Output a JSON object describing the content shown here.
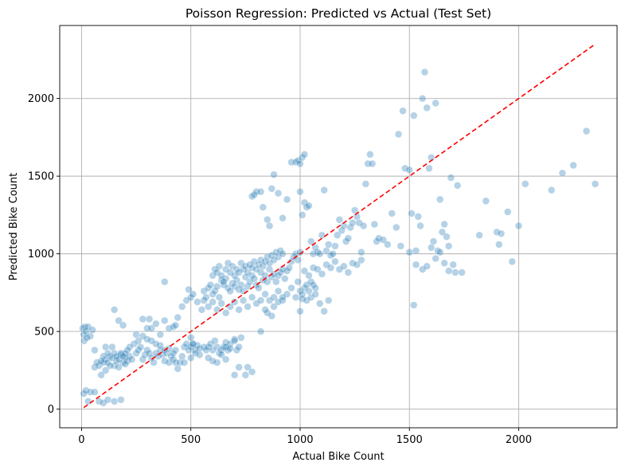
{
  "chart_data": {
    "type": "scatter",
    "title": "Poisson Regression: Predicted vs Actual (Test Set)",
    "xlabel": "Actual Bike Count",
    "ylabel": "Predicted Bike Count",
    "xlim": [
      -100,
      2450
    ],
    "ylim": [
      -120,
      2470
    ],
    "xticks": [
      0,
      500,
      1000,
      1500,
      2000
    ],
    "yticks": [
      0,
      500,
      1000,
      1500,
      2000
    ],
    "xtick_labels": [
      "0",
      "500",
      "1000",
      "1500",
      "2000"
    ],
    "ytick_labels": [
      "0",
      "500",
      "1000",
      "1500",
      "2000"
    ],
    "grid": true,
    "point_color": "#1f77b4",
    "reference_line": {
      "from": [
        10,
        10
      ],
      "to": [
        2350,
        2350
      ],
      "color": "#ff0000",
      "style": "dashed"
    },
    "points": [
      [
        5,
        520
      ],
      [
        10,
        480
      ],
      [
        15,
        530
      ],
      [
        20,
        500
      ],
      [
        30,
        530
      ],
      [
        40,
        470
      ],
      [
        50,
        510
      ],
      [
        12,
        440
      ],
      [
        25,
        460
      ],
      [
        10,
        100
      ],
      [
        20,
        120
      ],
      [
        40,
        110
      ],
      [
        60,
        110
      ],
      [
        30,
        50
      ],
      [
        80,
        50
      ],
      [
        100,
        40
      ],
      [
        150,
        50
      ],
      [
        180,
        60
      ],
      [
        120,
        60
      ],
      [
        60,
        270
      ],
      [
        80,
        280
      ],
      [
        90,
        220
      ],
      [
        100,
        300
      ],
      [
        110,
        320
      ],
      [
        120,
        300
      ],
      [
        130,
        340
      ],
      [
        140,
        330
      ],
      [
        150,
        280
      ],
      [
        160,
        310
      ],
      [
        170,
        320
      ],
      [
        180,
        350
      ],
      [
        190,
        300
      ],
      [
        200,
        330
      ],
      [
        210,
        310
      ],
      [
        220,
        340
      ],
      [
        230,
        320
      ],
      [
        100,
        340
      ],
      [
        110,
        250
      ],
      [
        130,
        280
      ],
      [
        150,
        360
      ],
      [
        170,
        270
      ],
      [
        200,
        290
      ],
      [
        60,
        380
      ],
      [
        70,
        300
      ],
      [
        90,
        310
      ],
      [
        120,
        360
      ],
      [
        140,
        400
      ],
      [
        160,
        340
      ],
      [
        180,
        360
      ],
      [
        110,
        400
      ],
      [
        150,
        640
      ],
      [
        170,
        570
      ],
      [
        190,
        540
      ],
      [
        250,
        360
      ],
      [
        260,
        380
      ],
      [
        270,
        400
      ],
      [
        280,
        320
      ],
      [
        290,
        350
      ],
      [
        300,
        380
      ],
      [
        310,
        360
      ],
      [
        320,
        330
      ],
      [
        330,
        300
      ],
      [
        340,
        360
      ],
      [
        350,
        340
      ],
      [
        360,
        380
      ],
      [
        370,
        350
      ],
      [
        380,
        310
      ],
      [
        390,
        360
      ],
      [
        400,
        300
      ],
      [
        410,
        340
      ],
      [
        420,
        320
      ],
      [
        430,
        300
      ],
      [
        440,
        260
      ],
      [
        250,
        480
      ],
      [
        280,
        580
      ],
      [
        300,
        520
      ],
      [
        320,
        520
      ],
      [
        310,
        580
      ],
      [
        340,
        550
      ],
      [
        360,
        480
      ],
      [
        380,
        570
      ],
      [
        400,
        520
      ],
      [
        420,
        530
      ],
      [
        380,
        820
      ],
      [
        430,
        540
      ],
      [
        440,
        590
      ],
      [
        450,
        300
      ],
      [
        470,
        400
      ],
      [
        480,
        420
      ],
      [
        490,
        380
      ],
      [
        500,
        400
      ],
      [
        510,
        420
      ],
      [
        520,
        380
      ],
      [
        530,
        410
      ],
      [
        540,
        390
      ],
      [
        500,
        460
      ],
      [
        510,
        420
      ],
      [
        520,
        360
      ],
      [
        460,
        660
      ],
      [
        480,
        700
      ],
      [
        490,
        770
      ],
      [
        500,
        720
      ],
      [
        510,
        740
      ],
      [
        530,
        690
      ],
      [
        550,
        640
      ],
      [
        560,
        700
      ],
      [
        560,
        400
      ],
      [
        570,
        380
      ],
      [
        580,
        400
      ],
      [
        590,
        420
      ],
      [
        600,
        380
      ],
      [
        610,
        440
      ],
      [
        620,
        400
      ],
      [
        630,
        360
      ],
      [
        640,
        380
      ],
      [
        650,
        400
      ],
      [
        660,
        430
      ],
      [
        670,
        380
      ],
      [
        680,
        420
      ],
      [
        700,
        450
      ],
      [
        710,
        380
      ],
      [
        720,
        400
      ],
      [
        730,
        460
      ],
      [
        750,
        220
      ],
      [
        760,
        270
      ],
      [
        780,
        240
      ],
      [
        560,
        760
      ],
      [
        570,
        720
      ],
      [
        580,
        780
      ],
      [
        590,
        800
      ],
      [
        600,
        740
      ],
      [
        610,
        760
      ],
      [
        620,
        790
      ],
      [
        630,
        720
      ],
      [
        640,
        830
      ],
      [
        650,
        800
      ],
      [
        660,
        840
      ],
      [
        670,
        780
      ],
      [
        680,
        760
      ],
      [
        690,
        810
      ],
      [
        700,
        790
      ],
      [
        710,
        830
      ],
      [
        720,
        770
      ],
      [
        730,
        800
      ],
      [
        740,
        760
      ],
      [
        750,
        850
      ],
      [
        760,
        790
      ],
      [
        770,
        820
      ],
      [
        780,
        860
      ],
      [
        790,
        840
      ],
      [
        800,
        800
      ],
      [
        810,
        780
      ],
      [
        820,
        880
      ],
      [
        830,
        830
      ],
      [
        840,
        860
      ],
      [
        850,
        820
      ],
      [
        860,
        900
      ],
      [
        870,
        850
      ],
      [
        880,
        870
      ],
      [
        890,
        820
      ],
      [
        900,
        860
      ],
      [
        910,
        880
      ],
      [
        920,
        900
      ],
      [
        930,
        840
      ],
      [
        940,
        890
      ],
      [
        950,
        910
      ],
      [
        960,
        950
      ],
      [
        970,
        980
      ],
      [
        980,
        1000
      ],
      [
        990,
        960
      ],
      [
        1000,
        1010
      ],
      [
        600,
        860
      ],
      [
        610,
        900
      ],
      [
        620,
        880
      ],
      [
        630,
        920
      ],
      [
        640,
        860
      ],
      [
        650,
        820
      ],
      [
        660,
        900
      ],
      [
        670,
        940
      ],
      [
        680,
        880
      ],
      [
        690,
        920
      ],
      [
        700,
        860
      ],
      [
        710,
        900
      ],
      [
        720,
        880
      ],
      [
        730,
        940
      ],
      [
        740,
        900
      ],
      [
        750,
        920
      ],
      [
        760,
        880
      ],
      [
        770,
        930
      ],
      [
        780,
        910
      ],
      [
        790,
        950
      ],
      [
        800,
        900
      ],
      [
        810,
        930
      ],
      [
        820,
        960
      ],
      [
        830,
        920
      ],
      [
        840,
        950
      ],
      [
        850,
        980
      ],
      [
        860,
        940
      ],
      [
        870,
        990
      ],
      [
        880,
        960
      ],
      [
        890,
        1010
      ],
      [
        900,
        980
      ],
      [
        910,
        1020
      ],
      [
        920,
        1000
      ],
      [
        580,
        660
      ],
      [
        600,
        690
      ],
      [
        620,
        640
      ],
      [
        640,
        680
      ],
      [
        660,
        620
      ],
      [
        680,
        660
      ],
      [
        700,
        690
      ],
      [
        720,
        640
      ],
      [
        740,
        700
      ],
      [
        760,
        660
      ],
      [
        780,
        720
      ],
      [
        800,
        680
      ],
      [
        820,
        700
      ],
      [
        840,
        740
      ],
      [
        860,
        700
      ],
      [
        880,
        720
      ],
      [
        900,
        760
      ],
      [
        920,
        700
      ],
      [
        940,
        740
      ],
      [
        960,
        780
      ],
      [
        980,
        720
      ],
      [
        990,
        820
      ],
      [
        1000,
        760
      ],
      [
        1010,
        740
      ],
      [
        1020,
        780
      ],
      [
        1030,
        800
      ],
      [
        1040,
        760
      ],
      [
        1050,
        820
      ],
      [
        1060,
        800
      ],
      [
        1070,
        780
      ],
      [
        780,
        1370
      ],
      [
        790,
        1380
      ],
      [
        800,
        1400
      ],
      [
        820,
        1400
      ],
      [
        830,
        1300
      ],
      [
        850,
        1220
      ],
      [
        860,
        1180
      ],
      [
        870,
        1420
      ],
      [
        880,
        1510
      ],
      [
        900,
        1390
      ],
      [
        920,
        1230
      ],
      [
        940,
        1350
      ],
      [
        960,
        1590
      ],
      [
        980,
        1590
      ],
      [
        990,
        1600
      ],
      [
        1000,
        1580
      ],
      [
        1010,
        1620
      ],
      [
        1020,
        1640
      ],
      [
        1000,
        1400
      ],
      [
        1010,
        1250
      ],
      [
        1020,
        1330
      ],
      [
        1030,
        1300
      ],
      [
        1040,
        1310
      ],
      [
        1050,
        1080
      ],
      [
        1060,
        1000
      ],
      [
        1070,
        1040
      ],
      [
        1080,
        1010
      ],
      [
        1090,
        1000
      ],
      [
        1100,
        1120
      ],
      [
        1110,
        1410
      ],
      [
        1120,
        1020
      ],
      [
        1130,
        1060
      ],
      [
        1140,
        990
      ],
      [
        1150,
        1000
      ],
      [
        1160,
        1050
      ],
      [
        1170,
        1120
      ],
      [
        1180,
        1220
      ],
      [
        1190,
        1150
      ],
      [
        1200,
        1180
      ],
      [
        1210,
        1080
      ],
      [
        1220,
        1100
      ],
      [
        1230,
        1170
      ],
      [
        1240,
        1200
      ],
      [
        1250,
        1280
      ],
      [
        1260,
        1240
      ],
      [
        1270,
        1200
      ],
      [
        1280,
        1010
      ],
      [
        1290,
        1180
      ],
      [
        1300,
        1450
      ],
      [
        1310,
        1580
      ],
      [
        1320,
        1640
      ],
      [
        1330,
        1580
      ],
      [
        1340,
        1190
      ],
      [
        1350,
        1080
      ],
      [
        1360,
        1100
      ],
      [
        1380,
        1090
      ],
      [
        1400,
        1060
      ],
      [
        1420,
        1260
      ],
      [
        1440,
        1170
      ],
      [
        1450,
        1770
      ],
      [
        1460,
        1050
      ],
      [
        1470,
        1920
      ],
      [
        1480,
        1550
      ],
      [
        1500,
        1540
      ],
      [
        1510,
        1260
      ],
      [
        1520,
        1890
      ],
      [
        1530,
        1020
      ],
      [
        1540,
        1240
      ],
      [
        1550,
        1180
      ],
      [
        1560,
        2000
      ],
      [
        1570,
        2170
      ],
      [
        1580,
        1940
      ],
      [
        1590,
        1550
      ],
      [
        1600,
        1620
      ],
      [
        1610,
        1080
      ],
      [
        1620,
        1970
      ],
      [
        1630,
        1020
      ],
      [
        1640,
        1350
      ],
      [
        1650,
        1140
      ],
      [
        1660,
        1190
      ],
      [
        1670,
        1110
      ],
      [
        1680,
        1050
      ],
      [
        1690,
        1490
      ],
      [
        1700,
        930
      ],
      [
        1710,
        880
      ],
      [
        1720,
        1440
      ],
      [
        1740,
        880
      ],
      [
        1820,
        1120
      ],
      [
        1850,
        1340
      ],
      [
        1900,
        1140
      ],
      [
        1910,
        1060
      ],
      [
        1920,
        1130
      ],
      [
        1950,
        1270
      ],
      [
        1970,
        950
      ],
      [
        2000,
        1180
      ],
      [
        2030,
        1450
      ],
      [
        2150,
        1410
      ],
      [
        2200,
        1520
      ],
      [
        2250,
        1570
      ],
      [
        2310,
        1790
      ],
      [
        2350,
        1450
      ],
      [
        1500,
        1010
      ],
      [
        1520,
        670
      ],
      [
        1530,
        930
      ],
      [
        1560,
        900
      ],
      [
        1580,
        920
      ],
      [
        1600,
        1040
      ],
      [
        1620,
        970
      ],
      [
        1640,
        1010
      ],
      [
        1660,
        940
      ],
      [
        1680,
        890
      ],
      [
        1000,
        630
      ],
      [
        1010,
        710
      ],
      [
        1030,
        700
      ],
      [
        1050,
        720
      ],
      [
        1070,
        740
      ],
      [
        1090,
        680
      ],
      [
        1110,
        630
      ],
      [
        1130,
        700
      ],
      [
        1020,
        890
      ],
      [
        1040,
        860
      ],
      [
        1060,
        910
      ],
      [
        1080,
        900
      ],
      [
        1100,
        870
      ],
      [
        1120,
        930
      ],
      [
        1140,
        910
      ],
      [
        1160,
        950
      ],
      [
        1180,
        900
      ],
      [
        1200,
        920
      ],
      [
        1220,
        880
      ],
      [
        1240,
        940
      ],
      [
        1260,
        930
      ],
      [
        1280,
        960
      ],
      [
        870,
        600
      ],
      [
        880,
        660
      ],
      [
        900,
        690
      ],
      [
        920,
        720
      ],
      [
        820,
        500
      ],
      [
        850,
        620
      ],
      [
        840,
        640
      ],
      [
        620,
        300
      ],
      [
        660,
        400
      ],
      [
        700,
        220
      ],
      [
        720,
        270
      ],
      [
        680,
        390
      ],
      [
        700,
        440
      ],
      [
        640,
        350
      ],
      [
        660,
        320
      ],
      [
        600,
        310
      ],
      [
        580,
        330
      ],
      [
        540,
        350
      ],
      [
        500,
        330
      ],
      [
        470,
        300
      ],
      [
        460,
        340
      ],
      [
        430,
        380
      ],
      [
        420,
        360
      ],
      [
        400,
        390
      ],
      [
        380,
        380
      ],
      [
        360,
        410
      ],
      [
        340,
        420
      ],
      [
        320,
        440
      ],
      [
        300,
        450
      ],
      [
        280,
        470
      ],
      [
        260,
        440
      ],
      [
        240,
        420
      ],
      [
        220,
        400
      ],
      [
        210,
        380
      ],
      [
        200,
        360
      ],
      [
        190,
        340
      ]
    ]
  }
}
